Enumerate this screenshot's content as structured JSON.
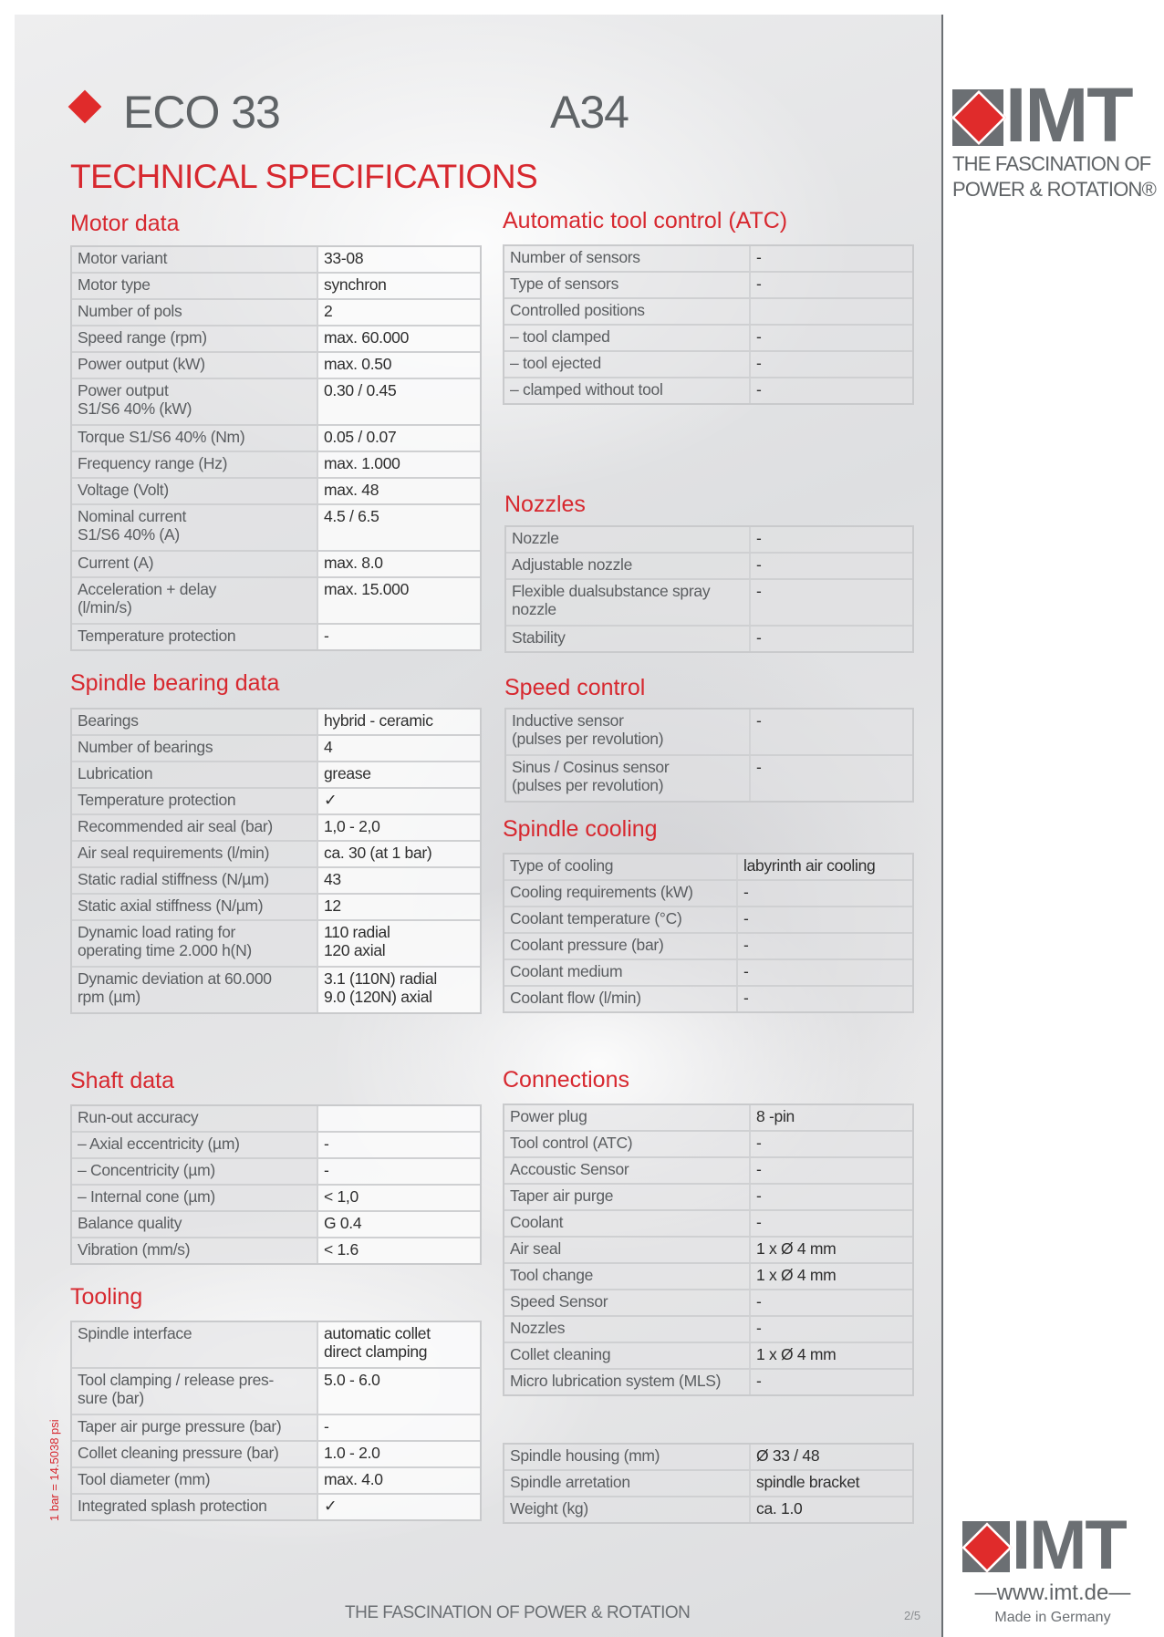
{
  "header": {
    "product": "ECO 33",
    "model": "A34",
    "title": "TECHNICAL SPECIFICATIONS"
  },
  "logo": {
    "brand": "IMT",
    "tagline1": "THE FASCINATION OF",
    "tagline2": "POWER & ROTATION®",
    "url": "—www.imt.de—",
    "made": "Made in Germany"
  },
  "footer": {
    "slogan": "THE FASCINATION OF POWER  &  ROTATION",
    "page": "2/5",
    "conversion": "1 bar = 14.5038 psi"
  },
  "colors": {
    "accent": "#d7282f",
    "logo_gray": "#6b6f73"
  },
  "sections": [
    {
      "id": "motor",
      "title": "Motor data",
      "rows": [
        [
          "Motor variant",
          "33-08"
        ],
        [
          "Motor type",
          "synchron"
        ],
        [
          "Number of pols",
          "2"
        ],
        [
          "Speed range (rpm)",
          "max. 60.000"
        ],
        [
          "Power output (kW)",
          "max. 0.50"
        ],
        [
          "Power output\nS1/S6 40% (kW)",
          "0.30 / 0.45"
        ],
        [
          "Torque S1/S6 40% (Nm)",
          "0.05 / 0.07"
        ],
        [
          "Frequency range (Hz)",
          "max. 1.000"
        ],
        [
          "Voltage (Volt)",
          "max. 48"
        ],
        [
          "Nominal current\nS1/S6 40% (A)",
          "4.5 / 6.5"
        ],
        [
          "Current (A)",
          "max. 8.0"
        ],
        [
          "Acceleration + delay\n(l/min/s)",
          "max. 15.000"
        ],
        [
          "Temperature protection",
          "-"
        ]
      ]
    },
    {
      "id": "bearing",
      "title": "Spindle bearing data",
      "rows": [
        [
          "Bearings",
          "hybrid - ceramic"
        ],
        [
          "Number of bearings",
          "4"
        ],
        [
          "Lubrication",
          "grease"
        ],
        [
          "Temperature protection",
          "✓"
        ],
        [
          "Recommended air seal (bar)",
          "1,0 - 2,0"
        ],
        [
          "Air seal requirements (l/min)",
          "ca. 30 (at 1 bar)"
        ],
        [
          "Static radial stiffness (N/µm)",
          "43"
        ],
        [
          "Static axial stiffness (N/µm)",
          "12"
        ],
        [
          "Dynamic load rating for\noperating time 2.000 h(N)",
          "110 radial\n120 axial"
        ],
        [
          "Dynamic deviation at 60.000\nrpm (µm)",
          "3.1 (110N) radial\n9.0 (120N) axial"
        ]
      ]
    },
    {
      "id": "shaft",
      "title": "Shaft data",
      "rows": [
        [
          "Run-out accuracy",
          ""
        ],
        [
          "– Axial eccentricity (µm)",
          "-"
        ],
        [
          "– Concentricity (µm)",
          "-"
        ],
        [
          "– Internal cone (µm)",
          "< 1,0"
        ],
        [
          "Balance quality",
          "G 0.4"
        ],
        [
          "Vibration (mm/s)",
          "< 1.6"
        ]
      ]
    },
    {
      "id": "tooling",
      "title": "Tooling",
      "rows": [
        [
          "Spindle interface",
          "automatic collet\ndirect clamping"
        ],
        [
          "Tool clamping / release pres-\nsure (bar)",
          "5.0 - 6.0"
        ],
        [
          "Taper air purge pressure (bar)",
          "-"
        ],
        [
          "Collet cleaning pressure (bar)",
          "1.0 - 2.0"
        ],
        [
          "Tool diameter (mm)",
          "max. 4.0"
        ],
        [
          "Integrated splash protection",
          "✓"
        ]
      ]
    },
    {
      "id": "atc",
      "title": "Automatic tool control (ATC)",
      "rows": [
        [
          "Number of sensors",
          "-"
        ],
        [
          "Type of sensors",
          "-"
        ],
        [
          "Controlled positions",
          ""
        ],
        [
          "– tool clamped",
          "-"
        ],
        [
          "– tool ejected",
          "-"
        ],
        [
          "– clamped without tool",
          "-"
        ]
      ]
    },
    {
      "id": "nozzles",
      "title": "Nozzles",
      "rows": [
        [
          "Nozzle",
          "-"
        ],
        [
          "Adjustable nozzle",
          "-"
        ],
        [
          "Flexible dualsubstance spray\nnozzle",
          "-"
        ],
        [
          "Stability",
          "-"
        ]
      ]
    },
    {
      "id": "speed",
      "title": "Speed control",
      "rows": [
        [
          "Inductive sensor\n(pulses per revolution)",
          "-"
        ],
        [
          "Sinus / Cosinus sensor\n(pulses per revolution)",
          "-"
        ]
      ]
    },
    {
      "id": "cooling",
      "title": "Spindle cooling",
      "rows": [
        [
          "Type of cooling",
          "labyrinth air cooling"
        ],
        [
          "Cooling requirements (kW)",
          "-"
        ],
        [
          "Coolant temperature (°C)",
          "-"
        ],
        [
          "Coolant pressure (bar)",
          "-"
        ],
        [
          "Coolant medium",
          "-"
        ],
        [
          "Coolant flow (l/min)",
          "-"
        ]
      ]
    },
    {
      "id": "connections",
      "title": "Connections",
      "rows": [
        [
          "Power plug",
          "8 -pin"
        ],
        [
          "Tool control (ATC)",
          "-"
        ],
        [
          "Accoustic Sensor",
          "-"
        ],
        [
          "Taper air purge",
          "-"
        ],
        [
          "Coolant",
          "-"
        ],
        [
          "Air seal",
          "1 x Ø 4 mm"
        ],
        [
          "Tool change",
          "1 x Ø 4 mm"
        ],
        [
          "Speed Sensor",
          "-"
        ],
        [
          "Nozzles",
          "-"
        ],
        [
          "Collet cleaning",
          "1 x Ø 4 mm"
        ],
        [
          "Micro lubrication system (MLS)",
          "-"
        ]
      ]
    },
    {
      "id": "housing",
      "title": "",
      "rows": [
        [
          "Spindle housing (mm)",
          "Ø 33 / 48"
        ],
        [
          "Spindle arretation",
          "spindle bracket"
        ],
        [
          "Weight (kg)",
          "ca. 1.0"
        ]
      ]
    }
  ]
}
